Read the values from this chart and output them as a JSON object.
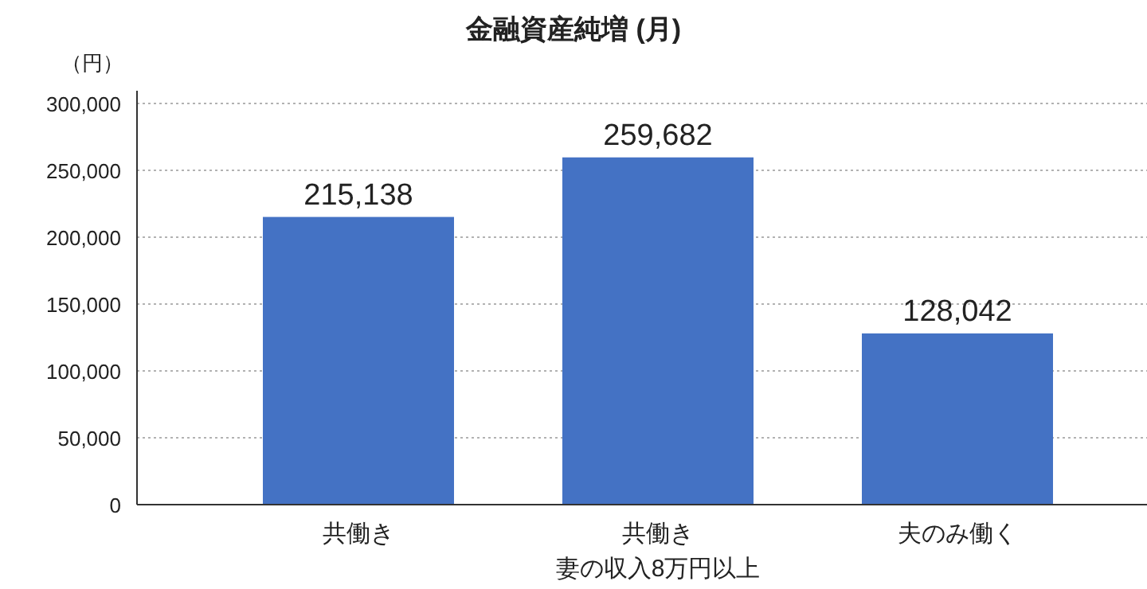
{
  "chart_data": {
    "type": "bar",
    "title": "金融資産純増 (月)",
    "ylabel": "（円）",
    "categories": [
      "共働き",
      "共働き妻の収入8万円以上",
      "夫のみ働く"
    ],
    "values": [
      215138,
      259682,
      128042
    ],
    "color": "#4472c4",
    "ylim": [
      0,
      300000
    ],
    "yticks": [
      {
        "value": 0,
        "label": "0"
      },
      {
        "value": 50000,
        "label": "50,000"
      },
      {
        "value": 100000,
        "label": "100,000"
      },
      {
        "value": 150000,
        "label": "150,000"
      },
      {
        "value": 200000,
        "label": "200,000"
      },
      {
        "value": 250000,
        "label": "250,000"
      },
      {
        "value": 300000,
        "label": "300,000"
      }
    ],
    "grid": "y",
    "value_labels": [
      "215,138",
      "259,682",
      "128,042"
    ]
  }
}
